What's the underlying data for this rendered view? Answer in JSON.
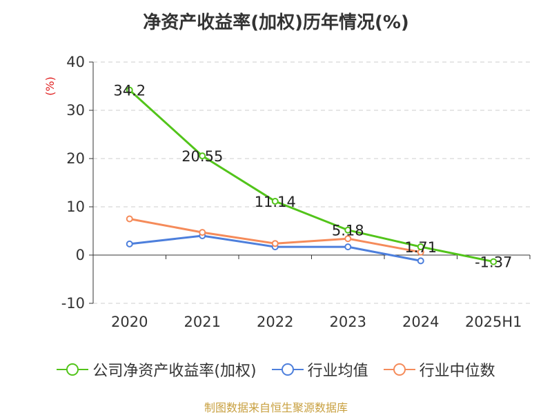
{
  "title": "净资产收益率(加权)历年情况(%)",
  "source_note": "制图数据来自恒生聚源数据库",
  "chart_data": {
    "type": "line",
    "title": "净资产收益率(加权)历年情况(%)",
    "ylabel": "(%)",
    "xlabel": "",
    "categories": [
      "2020",
      "2021",
      "2022",
      "2023",
      "2024",
      "2025H1"
    ],
    "ylim": [
      -10,
      40
    ],
    "yticks": [
      "-10",
      "0",
      "10",
      "20",
      "30",
      "40"
    ],
    "grid": true,
    "legend_position": "bottom",
    "series": [
      {
        "name": "公司净资产收益率(加权)",
        "color": "#52c41a",
        "values": [
          34.2,
          20.55,
          11.14,
          5.18,
          1.71,
          -1.37
        ],
        "labels": [
          "34.2",
          "20.55",
          "11.14",
          "5.18",
          "1.71",
          "-1.37"
        ]
      },
      {
        "name": "行业均值",
        "color": "#4d7fdc",
        "values": [
          2.3,
          4.0,
          1.7,
          1.7,
          -1.2,
          null
        ]
      },
      {
        "name": "行业中位数",
        "color": "#f58b5a",
        "values": [
          7.5,
          4.7,
          2.4,
          3.4,
          0.6,
          null
        ]
      }
    ]
  }
}
